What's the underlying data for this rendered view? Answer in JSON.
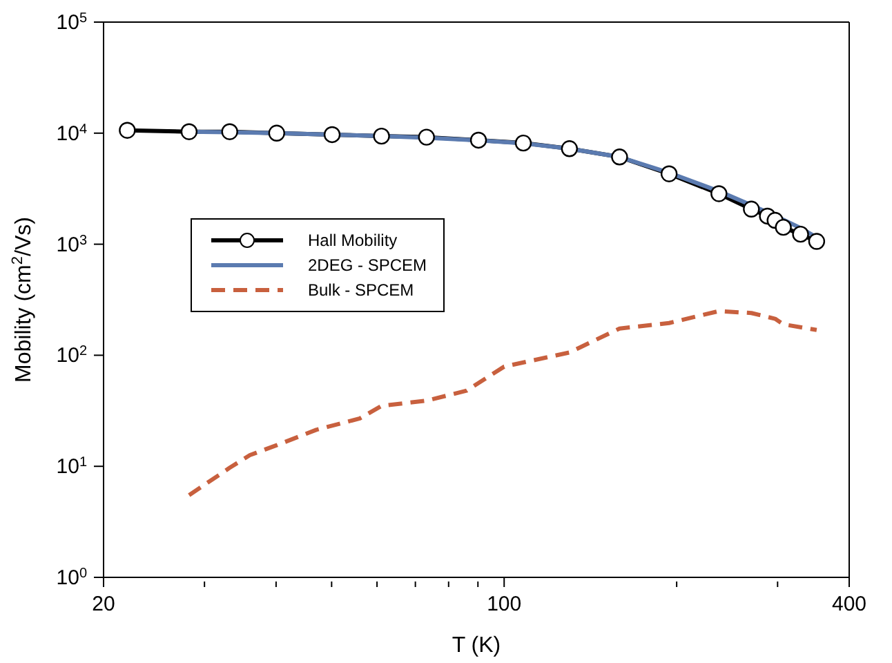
{
  "chart_data": {
    "type": "line",
    "xlabel": "T (K)",
    "ylabel": "Mobility (cm$^{2}$/Vs)",
    "log": "xy",
    "xlim": [
      20,
      400
    ],
    "xticks": [
      20,
      {
        "value": 30,
        "label": null
      },
      {
        "value": 40,
        "label": null
      },
      {
        "value": 50,
        "label": null
      },
      {
        "value": 60,
        "label": null
      },
      {
        "value": 70,
        "label": null
      },
      {
        "value": 80,
        "label": null
      },
      {
        "value": 90,
        "label": null
      },
      100,
      {
        "value": 200,
        "label": null
      },
      {
        "value": 300,
        "label": null
      },
      400
    ],
    "ylim": [
      1,
      100000
    ],
    "yticks": [
      {
        "value": 1,
        "label": "10$^{0}$"
      },
      {
        "value": 10,
        "label": "10$^{1}$"
      },
      {
        "value": 100,
        "label": "10$^{2}$"
      },
      {
        "value": 1000,
        "label": "10$^{3}$"
      },
      {
        "value": 10000,
        "label": "10$^{4}$"
      },
      {
        "value": 100000,
        "label": "10$^{5}$"
      }
    ],
    "legend": "left",
    "series": [
      {
        "name": "Hall Mobility",
        "color": "#000000",
        "marker": "circle",
        "line_style": "solid",
        "x": [
          22,
          28.2,
          33.2,
          40.1,
          50.1,
          61.1,
          73.2,
          90.2,
          108,
          130,
          159,
          194,
          237,
          270,
          288,
          297,
          307,
          329,
          351
        ],
        "values": [
          10600,
          10300,
          10300,
          10000,
          9700,
          9400,
          9200,
          8650,
          8150,
          7250,
          6100,
          4300,
          2850,
          2070,
          1790,
          1640,
          1420,
          1230,
          1060
        ]
      },
      {
        "name": "2DEG - SPCEM",
        "color": "#5b7bb0",
        "marker": "none",
        "line_style": "solid",
        "x": [
          28.2,
          33.2,
          40.1,
          50.1,
          61.1,
          73.2,
          90.2,
          108,
          130,
          159,
          194,
          237,
          270,
          297,
          329,
          351
        ],
        "values": [
          10300,
          10200,
          10000,
          9700,
          9400,
          9100,
          8600,
          8100,
          7250,
          6100,
          4400,
          3000,
          2250,
          1800,
          1400,
          1150
        ]
      },
      {
        "name": "Bulk - SPCEM",
        "color": "#c8603e",
        "marker": "none",
        "line_style": "dashed",
        "x": [
          28.2,
          33.2,
          36,
          40.1,
          47,
          56,
          61.1,
          73.2,
          86,
          100,
          130,
          159,
          194,
          237,
          270,
          297,
          307,
          351
        ],
        "values": [
          5.5,
          9.7,
          12.6,
          15.5,
          21.3,
          27,
          35,
          39,
          48,
          79,
          106,
          174,
          195,
          250,
          240,
          213,
          190,
          169
        ]
      }
    ]
  }
}
